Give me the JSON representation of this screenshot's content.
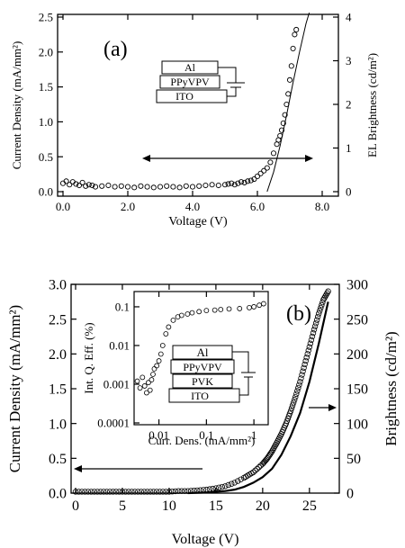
{
  "chart_data": [
    {
      "panel": "(a)",
      "type": "scatter",
      "xlabel": "Voltage (V)",
      "ylabel_left": "Current Density (mA/mm²)",
      "ylabel_right": "EL Brightness (cd/m²)",
      "xlim": [
        0,
        8
      ],
      "ylim_left": [
        0,
        2.5
      ],
      "ylim_right": [
        0,
        4
      ],
      "xticks": [
        "0.0",
        "2.0",
        "4.0",
        "6.0",
        "8.0"
      ],
      "yticks_left": [
        "0.0",
        "0.5",
        "1.0",
        "1.5",
        "2.0",
        "2.5"
      ],
      "yticks_right": [
        "0",
        "1",
        "2",
        "3",
        "4"
      ],
      "device_layers": [
        "Al",
        "PPyVPV",
        "ITO"
      ],
      "series": [
        {
          "role": "current density (circles, left axis)",
          "x": [
            0.0,
            0.1,
            0.2,
            0.3,
            0.4,
            0.5,
            0.6,
            0.7,
            0.8,
            0.9,
            1.0,
            1.2,
            1.4,
            1.6,
            1.8,
            2.0,
            2.2,
            2.4,
            2.6,
            2.8,
            3.0,
            3.2,
            3.4,
            3.6,
            3.8,
            4.0,
            4.2,
            4.4,
            4.6,
            4.8,
            5.0,
            5.1,
            5.2,
            5.3,
            5.4,
            5.5,
            5.6,
            5.7,
            5.8,
            5.9,
            6.0,
            6.1,
            6.2,
            6.3,
            6.4,
            6.5,
            6.6,
            6.65,
            6.7,
            6.75,
            6.8,
            6.85,
            6.9,
            6.95,
            7.0,
            7.05,
            7.1,
            7.15,
            7.2
          ],
          "y": [
            0.12,
            0.15,
            0.1,
            0.14,
            0.11,
            0.09,
            0.13,
            0.08,
            0.1,
            0.09,
            0.07,
            0.08,
            0.09,
            0.07,
            0.08,
            0.07,
            0.06,
            0.08,
            0.07,
            0.06,
            0.07,
            0.08,
            0.07,
            0.06,
            0.08,
            0.07,
            0.08,
            0.09,
            0.1,
            0.09,
            0.1,
            0.11,
            0.12,
            0.1,
            0.12,
            0.14,
            0.13,
            0.15,
            0.16,
            0.18,
            0.22,
            0.26,
            0.3,
            0.34,
            0.42,
            0.55,
            0.68,
            0.74,
            0.8,
            0.88,
            0.98,
            1.1,
            1.25,
            1.4,
            1.6,
            1.8,
            2.05,
            2.25,
            2.32
          ]
        },
        {
          "role": "EL brightness (line, right axis)",
          "x": [
            6.3,
            6.5,
            6.7,
            6.9,
            7.1,
            7.3,
            7.5,
            7.6
          ],
          "y": [
            0.0,
            0.45,
            1.05,
            1.75,
            2.5,
            3.2,
            3.85,
            4.1
          ]
        }
      ]
    },
    {
      "panel": "(b)",
      "type": "scatter",
      "xlabel": "Voltage (V)",
      "ylabel_left": "Current Density (mA/mm²)",
      "ylabel_right": "Brightness (cd/m²)",
      "xlim": [
        0,
        28
      ],
      "ylim_left": [
        0,
        3.0
      ],
      "ylim_right": [
        0,
        300
      ],
      "xticks": [
        "0",
        "5",
        "10",
        "15",
        "20",
        "25"
      ],
      "yticks_left": [
        "0.0",
        "0.5",
        "1.0",
        "1.5",
        "2.0",
        "2.5",
        "3.0"
      ],
      "yticks_right": [
        "0",
        "50",
        "100",
        "150",
        "200",
        "250",
        "300"
      ],
      "series": [
        {
          "role": "current density (circles, left axis)",
          "x": [
            0,
            1,
            2,
            3,
            4,
            5,
            6,
            7,
            8,
            9,
            10,
            11,
            12,
            13,
            14,
            15,
            16,
            17,
            18,
            19,
            20,
            20.5,
            21,
            21.5,
            22,
            22.5,
            23,
            23.5,
            24,
            24.5,
            25,
            25.5,
            26,
            26.5,
            27
          ],
          "y": [
            0.02,
            0.02,
            0.02,
            0.02,
            0.02,
            0.02,
            0.02,
            0.02,
            0.02,
            0.02,
            0.02,
            0.03,
            0.03,
            0.04,
            0.05,
            0.07,
            0.1,
            0.15,
            0.22,
            0.3,
            0.42,
            0.5,
            0.6,
            0.72,
            0.85,
            1.0,
            1.18,
            1.38,
            1.6,
            1.85,
            2.1,
            2.35,
            2.58,
            2.78,
            2.9
          ]
        },
        {
          "role": "brightness (line, right axis)",
          "x": [
            12,
            14,
            16,
            17,
            18,
            19,
            20,
            21,
            22,
            23,
            24,
            25,
            26,
            27
          ],
          "y": [
            0,
            1,
            3,
            5,
            9,
            15,
            23,
            35,
            55,
            82,
            115,
            160,
            215,
            275
          ]
        }
      ],
      "inset": {
        "type": "scatter",
        "xlabel": "Curr. Dens. (mA/mm²)",
        "ylabel": "Int. Q. Eff. (%)",
        "xscale": "log",
        "yscale": "log",
        "xlim": [
          0.003,
          2
        ],
        "ylim": [
          0.0001,
          0.2
        ],
        "xticks": [
          "0.01",
          "0.1",
          "1"
        ],
        "yticks": [
          "0.0001",
          "0.001",
          "0.01",
          "0.1"
        ],
        "device_layers": [
          "Al",
          "PPyVPV",
          "PVK",
          "ITO"
        ],
        "x": [
          0.0035,
          0.004,
          0.0045,
          0.005,
          0.0055,
          0.006,
          0.0065,
          0.007,
          0.0075,
          0.008,
          0.009,
          0.01,
          0.011,
          0.012,
          0.014,
          0.016,
          0.02,
          0.025,
          0.03,
          0.04,
          0.05,
          0.07,
          0.1,
          0.15,
          0.2,
          0.3,
          0.5,
          0.8,
          1.0,
          1.3,
          1.6
        ],
        "y": [
          0.0012,
          0.0008,
          0.0015,
          0.0009,
          0.0006,
          0.0011,
          0.0007,
          0.0013,
          0.0018,
          0.0025,
          0.003,
          0.004,
          0.006,
          0.01,
          0.02,
          0.03,
          0.045,
          0.055,
          0.06,
          0.065,
          0.07,
          0.075,
          0.08,
          0.082,
          0.085,
          0.088,
          0.09,
          0.095,
          0.1,
          0.11,
          0.12
        ]
      }
    }
  ]
}
